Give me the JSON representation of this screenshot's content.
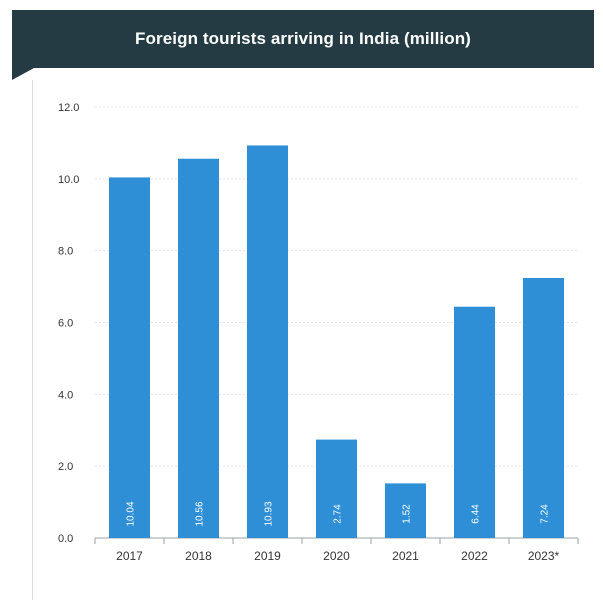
{
  "header": {
    "title": "Foreign tourists arriving in India (million)"
  },
  "colors": {
    "title_bar": "#243b43",
    "bar": "#2f8fd6",
    "gridline": "#e4e7ea",
    "axis_text": "#333333",
    "bar_label": "#ffffff"
  },
  "chart_data": {
    "type": "bar",
    "title": "Foreign tourists arriving in India (million)",
    "xlabel": "",
    "ylabel": "",
    "categories": [
      "2017",
      "2018",
      "2019",
      "2020",
      "2021",
      "2022",
      "2023*"
    ],
    "values": [
      10.04,
      10.56,
      10.93,
      2.74,
      1.52,
      6.44,
      7.24
    ],
    "bar_labels": [
      "10.04",
      "10.56",
      "10.93",
      "2.74",
      "1.52",
      "6.44",
      "7.24"
    ],
    "ylim": [
      0,
      12
    ],
    "yticks": [
      "0.0",
      "2.0",
      "4.0",
      "6.0",
      "8.0",
      "10.0",
      "12.0"
    ],
    "grid": true,
    "legend": "none"
  }
}
